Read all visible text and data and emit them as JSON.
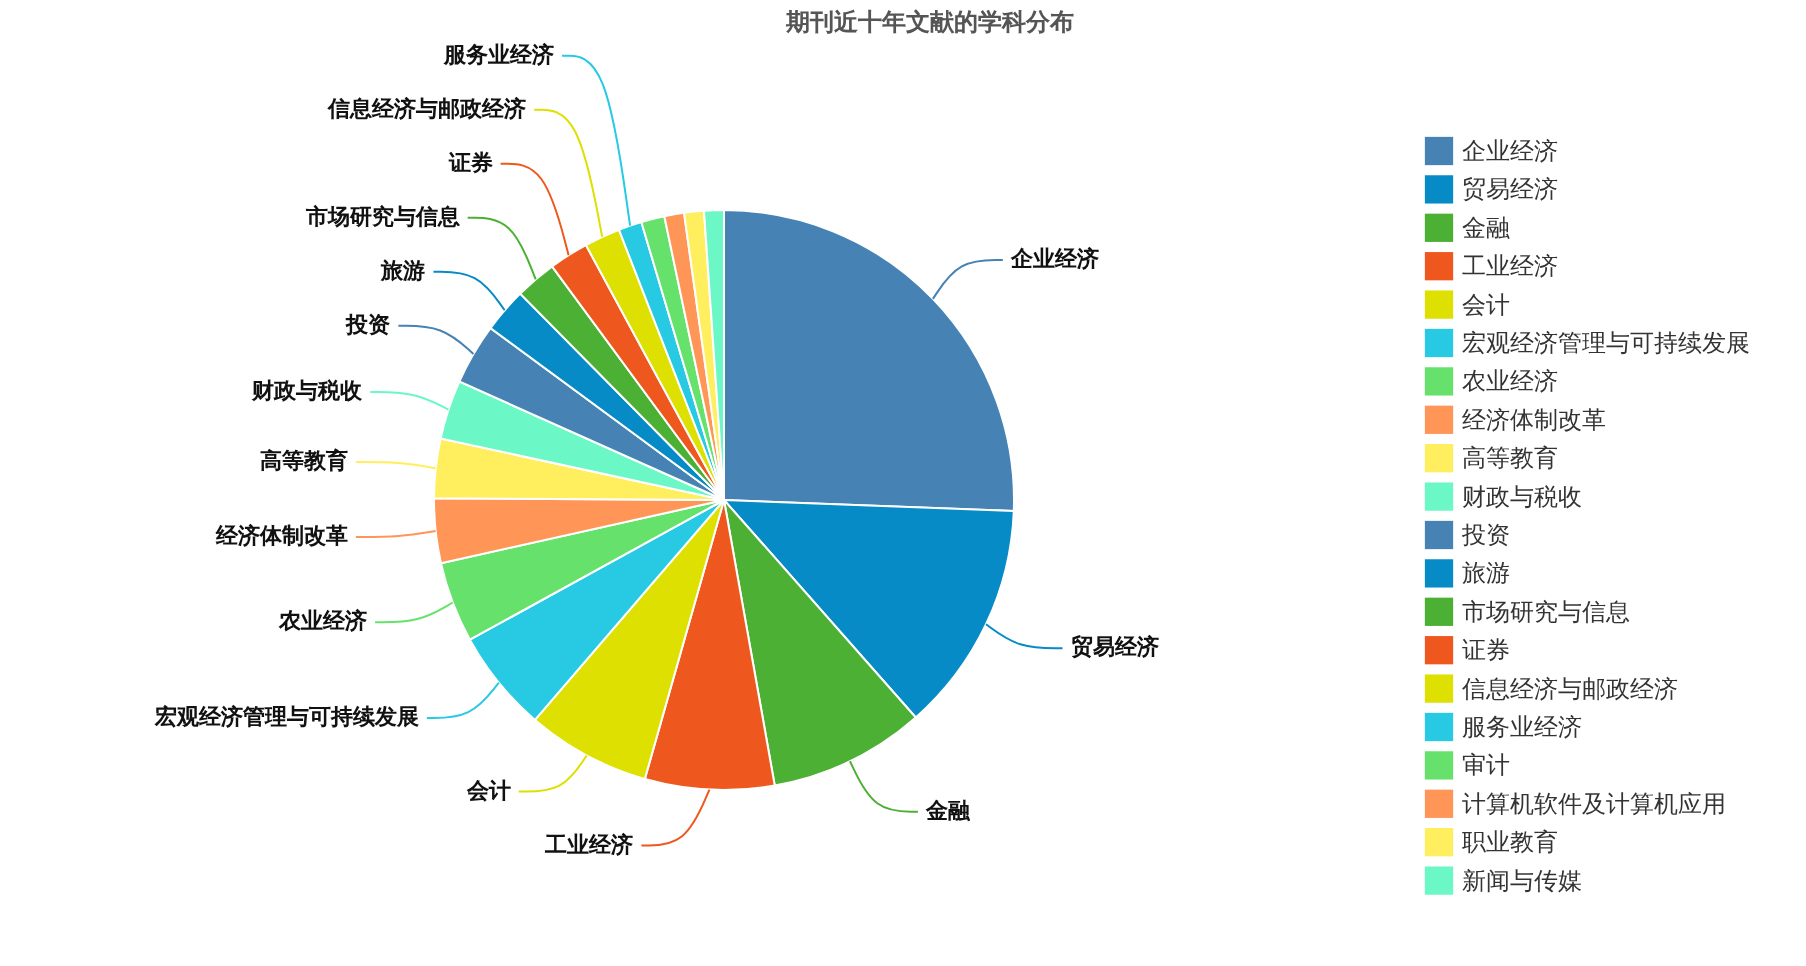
{
  "chart_data": {
    "type": "pie",
    "title": "期刊近十年文献的学科分布",
    "categories": [
      "企业经济",
      "贸易经济",
      "金融",
      "工业经济",
      "会计",
      "宏观经济管理与可持续发展",
      "农业经济",
      "经济体制改革",
      "高等教育",
      "财政与税收",
      "投资",
      "旅游",
      "市场研究与信息",
      "证券",
      "信息经济与邮政经济",
      "服务业经济",
      "审计",
      "计算机软件及计算机应用",
      "职业教育",
      "新闻与传媒"
    ],
    "values": [
      25.6,
      12.9,
      8.7,
      7.2,
      6.9,
      5.7,
      4.5,
      3.6,
      3.3,
      3.3,
      3.4,
      2.5,
      2.3,
      2.2,
      2.0,
      1.3,
      1.3,
      1.1,
      1.1,
      1.1
    ],
    "colors": [
      "#4682b4",
      "#068bc6",
      "#4cb034",
      "#ee581f",
      "#dde000",
      "#27c9e3",
      "#66e26c",
      "#ff9658",
      "#ffee5e",
      "#6cf7c6",
      "#4682b4",
      "#068bc6",
      "#4cb034",
      "#ee581f",
      "#dde000",
      "#27c9e3",
      "#66e26c",
      "#ff9658",
      "#ffee5e",
      "#6cf7c6"
    ],
    "value_labels": [
      "企业经济",
      "贸易经济",
      "金融",
      "工业经济",
      "会计",
      "宏观经济管理与可持续发展",
      "农业经济",
      "经济体制改革",
      "高等教育",
      "财政与税收",
      "投资",
      "旅游",
      "市场研究与信息",
      "证券",
      "信息经济与邮政经济",
      "服务业经济",
      null,
      null,
      null,
      null
    ],
    "legend": "right"
  }
}
